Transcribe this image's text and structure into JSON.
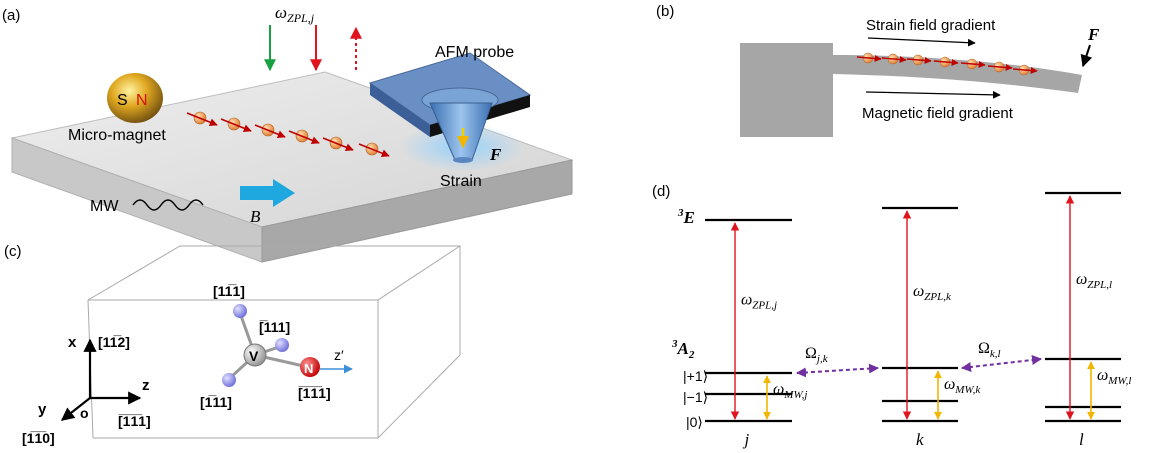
{
  "panels": {
    "a": {
      "label": "(a)",
      "omega": "ω",
      "omega_sub": "ZPL,j",
      "afm": "AFM probe",
      "magnet": "Micro-magnet",
      "magnet_s": "S",
      "magnet_n": "N",
      "force": "F",
      "strain": "Strain",
      "mw": "MW",
      "field": "B"
    },
    "b": {
      "label": "(b)",
      "strain_grad": "Strain field gradient",
      "mag_grad": "Magnetic field gradient",
      "force": "F"
    },
    "c": {
      "label": "(c)",
      "dir_top": "[11̅1]",
      "dir_right": "[̅111]",
      "dir_bottom": "[1̅11]",
      "dir_n": "[̅1̅1̅1]",
      "axis_x_dir": "[11̅2]",
      "axis_y_dir": "[1̅1̅0]",
      "axis_z_dir": "[̅1̅1̅1]",
      "axis_x": "x",
      "axis_y": "y",
      "axis_z": "z",
      "origin": "o",
      "atom_v": "V",
      "atom_n": "N",
      "zprime": "z′"
    },
    "d": {
      "label": "(d)",
      "excited": "E",
      "excited_sup": "3",
      "ground": "A",
      "ground_sub": "2",
      "ground_sup": "3",
      "ket_p1": "|+1⟩",
      "ket_m1": "|−1⟩",
      "ket_0": "|0⟩",
      "omega_sym": "ω",
      "Omega_sym": "Ω",
      "sites": [
        {
          "name": "j",
          "zpl_sub": "ZPL,j",
          "mw_sub": "MW,j"
        },
        {
          "name": "k",
          "zpl_sub": "ZPL,k",
          "mw_sub": "MW,k"
        },
        {
          "name": "l",
          "zpl_sub": "ZPL,l",
          "mw_sub": "MW,l"
        }
      ],
      "couplings": [
        {
          "sub": "j,k"
        },
        {
          "sub": "k,l"
        }
      ]
    }
  },
  "colors": {
    "laser": "#e0141c",
    "green": "#19a040",
    "mw": "#f2b500",
    "coupling": "#7030a0",
    "spin_arrow": "#c00000",
    "atom": "#e8a060",
    "slab": "#d9d9d9",
    "probe": "#5b7fb5",
    "field_arrow": "#1fa8e0",
    "vacancy": "#9a9ae6",
    "nitrogen": "#d81010"
  }
}
